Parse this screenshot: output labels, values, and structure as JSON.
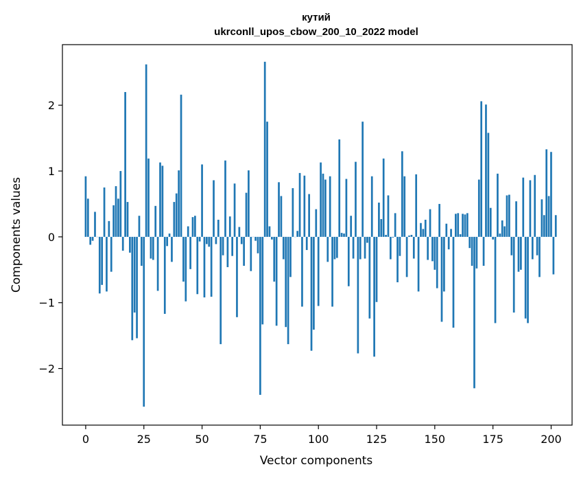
{
  "chart_data": {
    "type": "bar",
    "title_lines": [
      "кутий",
      "ukrconll_upos_cbow_200_10_2022 model"
    ],
    "xlabel": "Vector components",
    "ylabel": "Components values",
    "xlim": [
      -10,
      209
    ],
    "ylim": [
      -2.86,
      2.92
    ],
    "xticks": [
      0,
      25,
      50,
      75,
      100,
      125,
      150,
      175,
      200
    ],
    "xtick_labels": [
      "0",
      "25",
      "50",
      "75",
      "100",
      "125",
      "150",
      "175",
      "200"
    ],
    "yticks": [
      -2,
      -1,
      0,
      1,
      2
    ],
    "ytick_labels": [
      "−2",
      "−1",
      "0",
      "1",
      "2"
    ],
    "grid": false,
    "bar_color": "#1f77b4",
    "values": [
      0.92,
      0.58,
      -0.12,
      -0.06,
      0.38,
      0.0,
      -0.86,
      -0.73,
      0.75,
      -0.83,
      0.24,
      -0.53,
      0.48,
      0.77,
      0.58,
      1.0,
      -0.21,
      2.2,
      0.53,
      -0.24,
      -1.57,
      -1.15,
      -1.54,
      0.32,
      -0.44,
      -2.58,
      2.62,
      1.19,
      -0.33,
      -0.35,
      0.47,
      -0.82,
      1.13,
      1.08,
      -1.17,
      -0.14,
      0.05,
      -0.38,
      0.53,
      0.66,
      1.01,
      2.16,
      -0.68,
      -0.98,
      0.16,
      -0.49,
      0.3,
      0.32,
      -0.87,
      -0.07,
      1.1,
      -0.92,
      -0.11,
      -0.15,
      -0.91,
      0.86,
      -0.11,
      0.26,
      -1.63,
      -0.28,
      1.16,
      -0.46,
      0.31,
      -0.29,
      0.81,
      -1.22,
      0.15,
      -0.11,
      -0.44,
      0.67,
      1.01,
      -0.52,
      0.0,
      -0.06,
      -0.25,
      -2.4,
      -1.33,
      2.66,
      1.75,
      0.16,
      -0.04,
      -0.68,
      -1.35,
      0.83,
      0.62,
      -0.34,
      -1.37,
      -1.63,
      -0.61,
      0.74,
      0.0,
      0.09,
      0.97,
      -1.06,
      0.93,
      -0.2,
      0.65,
      -1.73,
      -1.41,
      0.42,
      -1.05,
      1.13,
      0.96,
      0.87,
      -0.38,
      0.92,
      -1.06,
      -0.34,
      -0.32,
      1.48,
      0.06,
      0.05,
      0.88,
      -0.75,
      0.32,
      -0.33,
      1.14,
      -1.77,
      -0.34,
      1.75,
      -0.33,
      -0.09,
      -1.24,
      0.92,
      -1.82,
      -0.99,
      0.52,
      0.27,
      1.19,
      0.03,
      0.63,
      -0.34,
      -0.01,
      0.36,
      -0.69,
      -0.29,
      1.3,
      0.92,
      -0.61,
      0.02,
      0.03,
      -0.33,
      0.95,
      -0.83,
      0.21,
      0.12,
      0.26,
      -0.35,
      0.42,
      -0.37,
      -0.5,
      -0.78,
      0.5,
      -1.29,
      -0.83,
      0.2,
      -0.19,
      0.12,
      -1.38,
      0.35,
      0.36,
      0.04,
      0.35,
      0.34,
      0.36,
      -0.17,
      -0.44,
      -2.3,
      -0.48,
      0.87,
      2.06,
      -0.44,
      2.01,
      1.58,
      0.44,
      -0.04,
      -1.31,
      0.96,
      0.05,
      0.25,
      0.16,
      0.63,
      0.64,
      -0.28,
      -1.15,
      0.54,
      -0.53,
      -0.5,
      0.9,
      -1.24,
      -1.31,
      0.86,
      -0.34,
      0.94,
      -0.28,
      -0.61,
      0.57,
      0.33,
      1.33,
      0.62,
      1.29,
      -0.57,
      0.33
    ]
  }
}
